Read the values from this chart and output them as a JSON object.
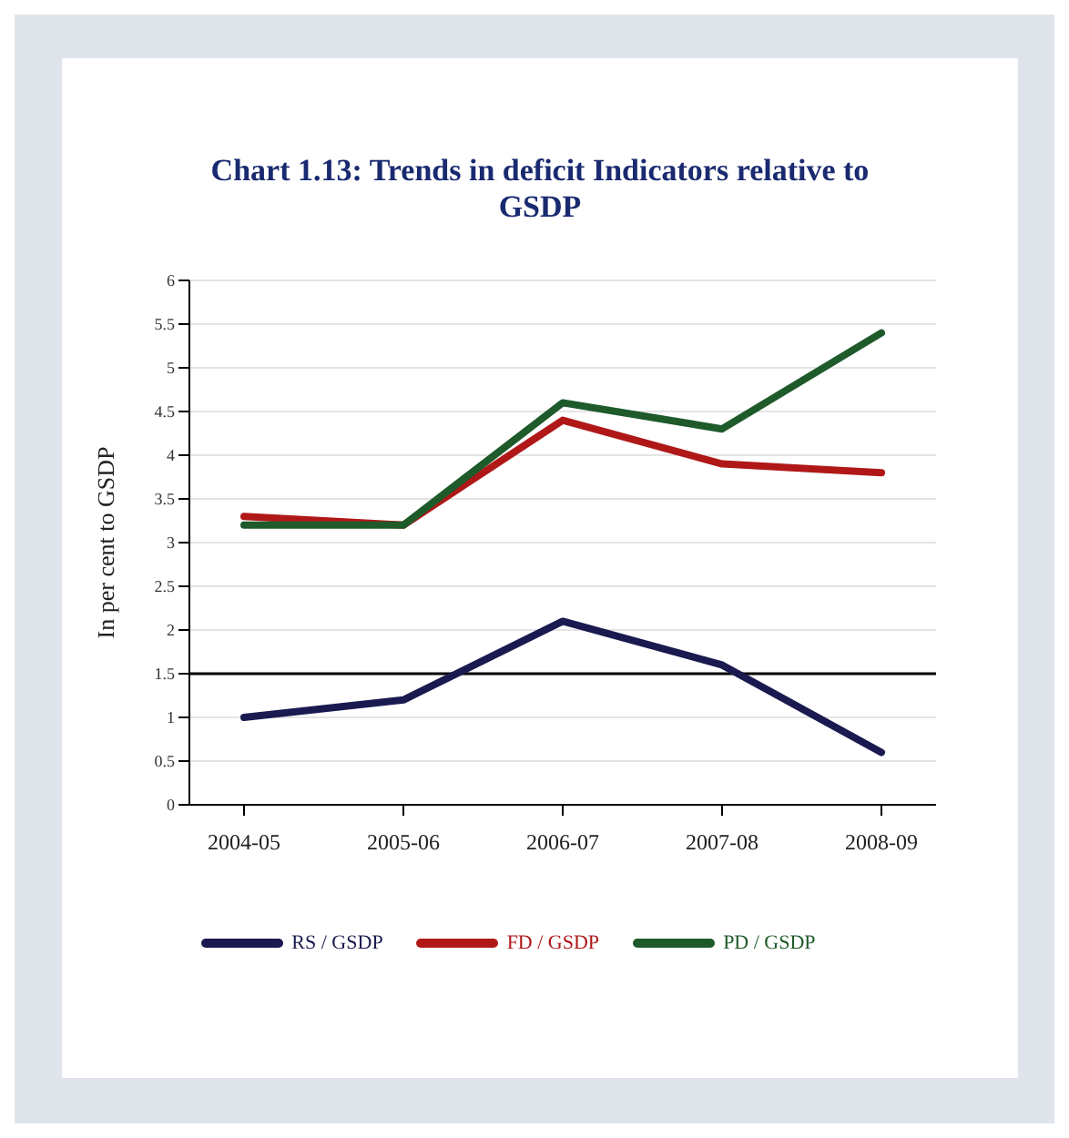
{
  "chart_data": {
    "type": "line",
    "title": "Chart 1.13: Trends in deficit Indicators relative to GSDP",
    "ylabel": "In per cent to GSDP",
    "categories": [
      "2004-05",
      "2005-06",
      "2006-07",
      "2007-08",
      "2008-09"
    ],
    "series": [
      {
        "name": "RS / GSDP",
        "color": "#1a1a50",
        "values": [
          1.0,
          1.2,
          2.1,
          1.6,
          0.6
        ]
      },
      {
        "name": "FD / GSDP",
        "color": "#b01818",
        "values": [
          3.3,
          3.2,
          4.4,
          3.9,
          3.8
        ]
      },
      {
        "name": "PD / GSDP",
        "color": "#1e5a2a",
        "values": [
          3.2,
          3.2,
          4.6,
          4.3,
          5.4
        ]
      }
    ],
    "ylim": [
      0,
      6
    ],
    "yticks": [
      0,
      0.5,
      1,
      1.5,
      2,
      2.5,
      3,
      3.5,
      4,
      4.5,
      5,
      5.5,
      6
    ],
    "grid": "y",
    "legend": "bottom",
    "marker": "none",
    "line_style": "solid",
    "ref_lines": [
      {
        "axis": "y",
        "value": 1.5,
        "color": "#000000"
      }
    ]
  }
}
